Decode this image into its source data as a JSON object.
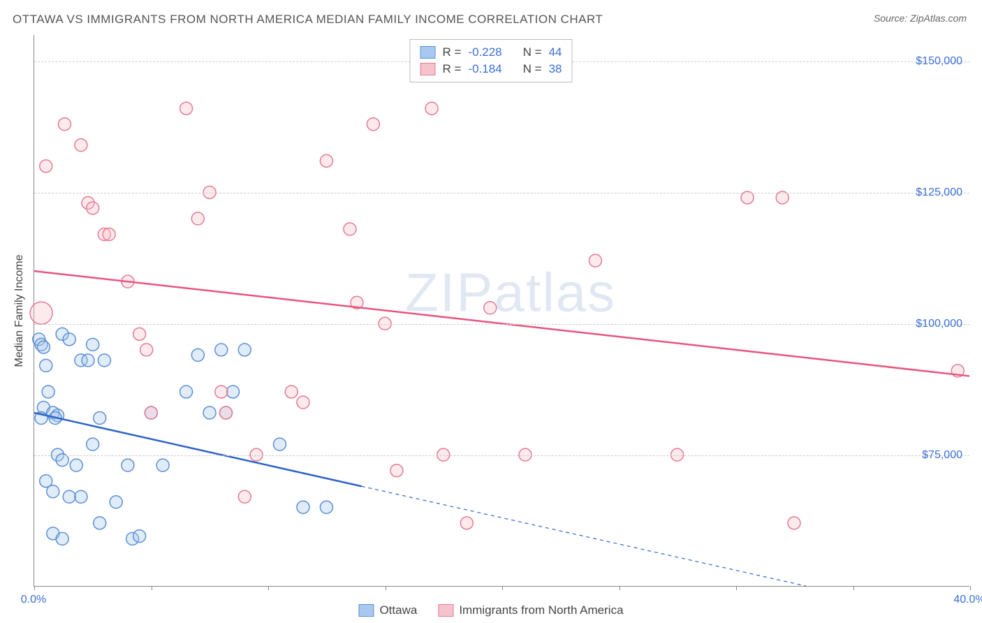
{
  "title": "OTTAWA VS IMMIGRANTS FROM NORTH AMERICA MEDIAN FAMILY INCOME CORRELATION CHART",
  "source_label": "Source:",
  "source_name": "ZipAtlas.com",
  "watermark": {
    "bold": "ZIP",
    "thin": "atlas"
  },
  "y_axis_label": "Median Family Income",
  "chart": {
    "type": "scatter",
    "background_color": "#ffffff",
    "grid_color": "#cccccc",
    "axis_color": "#888888",
    "xlim": [
      0,
      40
    ],
    "ylim": [
      50000,
      155000
    ],
    "x_ticks": [
      0,
      5,
      10,
      15,
      20,
      25,
      30,
      35,
      40
    ],
    "x_tick_labels": {
      "0": "0.0%",
      "40": "40.0%"
    },
    "y_ticks": [
      75000,
      100000,
      125000,
      150000
    ],
    "y_tick_labels": {
      "75000": "$75,000",
      "100000": "$100,000",
      "125000": "$125,000",
      "150000": "$150,000"
    },
    "marker_radius": 9,
    "marker_stroke_width": 1.5,
    "marker_fill_opacity": 0.35,
    "trend_line_width": 2.5,
    "series": [
      {
        "name": "Ottawa",
        "color_fill": "#a9c8ef",
        "color_stroke": "#5b8fd6",
        "trend_color": "#2f63c9",
        "R": "-0.228",
        "N": "44",
        "trend": {
          "x1": 0,
          "y1": 83000,
          "x2": 14,
          "y2": 69000,
          "extend_x2": 33,
          "extend_y2": 50000
        },
        "points": [
          {
            "x": 0.2,
            "y": 97000
          },
          {
            "x": 0.3,
            "y": 96000
          },
          {
            "x": 0.4,
            "y": 95500
          },
          {
            "x": 0.5,
            "y": 92000
          },
          {
            "x": 0.6,
            "y": 87000
          },
          {
            "x": 0.4,
            "y": 84000
          },
          {
            "x": 0.8,
            "y": 83000
          },
          {
            "x": 1.0,
            "y": 82500
          },
          {
            "x": 0.3,
            "y": 82000
          },
          {
            "x": 0.9,
            "y": 82000
          },
          {
            "x": 1.2,
            "y": 98000
          },
          {
            "x": 1.5,
            "y": 97000
          },
          {
            "x": 2.0,
            "y": 93000
          },
          {
            "x": 2.3,
            "y": 93000
          },
          {
            "x": 2.5,
            "y": 96000
          },
          {
            "x": 1.0,
            "y": 75000
          },
          {
            "x": 1.2,
            "y": 74000
          },
          {
            "x": 1.8,
            "y": 73000
          },
          {
            "x": 0.5,
            "y": 70000
          },
          {
            "x": 0.8,
            "y": 68000
          },
          {
            "x": 1.5,
            "y": 67000
          },
          {
            "x": 2.0,
            "y": 67000
          },
          {
            "x": 2.5,
            "y": 77000
          },
          {
            "x": 2.8,
            "y": 82000
          },
          {
            "x": 3.0,
            "y": 93000
          },
          {
            "x": 3.5,
            "y": 66000
          },
          {
            "x": 4.0,
            "y": 73000
          },
          {
            "x": 4.2,
            "y": 59000
          },
          {
            "x": 4.5,
            "y": 59500
          },
          {
            "x": 0.8,
            "y": 60000
          },
          {
            "x": 1.2,
            "y": 59000
          },
          {
            "x": 2.8,
            "y": 62000
          },
          {
            "x": 5.0,
            "y": 83000
          },
          {
            "x": 5.5,
            "y": 73000
          },
          {
            "x": 6.5,
            "y": 87000
          },
          {
            "x": 7.0,
            "y": 94000
          },
          {
            "x": 7.5,
            "y": 83000
          },
          {
            "x": 8.0,
            "y": 95000
          },
          {
            "x": 8.2,
            "y": 83000
          },
          {
            "x": 8.5,
            "y": 87000
          },
          {
            "x": 9.0,
            "y": 95000
          },
          {
            "x": 10.5,
            "y": 77000
          },
          {
            "x": 11.5,
            "y": 65000
          },
          {
            "x": 12.5,
            "y": 65000
          }
        ]
      },
      {
        "name": "Immigrants from North America",
        "color_fill": "#f5c3cc",
        "color_stroke": "#e77a94",
        "trend_color": "#e75480",
        "R": "-0.184",
        "N": "38",
        "trend": {
          "x1": 0,
          "y1": 110000,
          "x2": 40,
          "y2": 90000
        },
        "points": [
          {
            "x": 0.3,
            "y": 102000,
            "r": 16
          },
          {
            "x": 1.3,
            "y": 138000
          },
          {
            "x": 0.5,
            "y": 130000
          },
          {
            "x": 2.0,
            "y": 134000
          },
          {
            "x": 2.3,
            "y": 123000
          },
          {
            "x": 2.5,
            "y": 122000
          },
          {
            "x": 3.0,
            "y": 117000
          },
          {
            "x": 3.2,
            "y": 117000
          },
          {
            "x": 4.0,
            "y": 108000
          },
          {
            "x": 4.5,
            "y": 98000
          },
          {
            "x": 4.8,
            "y": 95000
          },
          {
            "x": 5.0,
            "y": 83000
          },
          {
            "x": 6.5,
            "y": 141000
          },
          {
            "x": 7.0,
            "y": 120000
          },
          {
            "x": 7.5,
            "y": 125000
          },
          {
            "x": 8.0,
            "y": 87000
          },
          {
            "x": 8.2,
            "y": 83000
          },
          {
            "x": 9.0,
            "y": 67000
          },
          {
            "x": 9.5,
            "y": 75000
          },
          {
            "x": 11.0,
            "y": 87000
          },
          {
            "x": 11.5,
            "y": 85000
          },
          {
            "x": 12.5,
            "y": 131000
          },
          {
            "x": 13.5,
            "y": 118000
          },
          {
            "x": 13.8,
            "y": 104000
          },
          {
            "x": 14.5,
            "y": 138000
          },
          {
            "x": 15.0,
            "y": 100000
          },
          {
            "x": 15.5,
            "y": 72000
          },
          {
            "x": 17.0,
            "y": 141000
          },
          {
            "x": 17.5,
            "y": 75000
          },
          {
            "x": 18.5,
            "y": 62000
          },
          {
            "x": 19.5,
            "y": 103000
          },
          {
            "x": 21.0,
            "y": 75000
          },
          {
            "x": 24.0,
            "y": 112000
          },
          {
            "x": 27.5,
            "y": 75000
          },
          {
            "x": 30.5,
            "y": 124000
          },
          {
            "x": 32.0,
            "y": 124000
          },
          {
            "x": 32.5,
            "y": 62000
          },
          {
            "x": 39.5,
            "y": 91000
          }
        ]
      }
    ]
  },
  "stats_legend": {
    "R_prefix": "R = ",
    "N_prefix": "N = "
  },
  "bottom_legend_labels": [
    "Ottawa",
    "Immigrants from North America"
  ]
}
